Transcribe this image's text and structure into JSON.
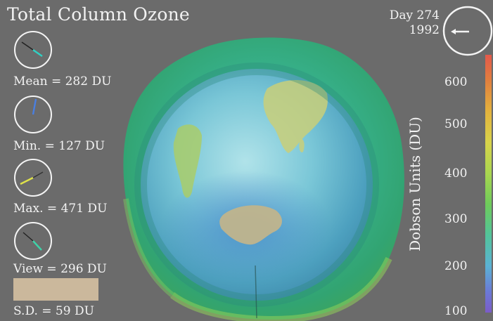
{
  "title": "Total Column Ozone",
  "date": {
    "day": "Day 274",
    "year": "1992"
  },
  "stats": [
    {
      "label": "Mean = 282 DU",
      "dial_color": "#31d0c3"
    },
    {
      "label": "Min. = 127 DU",
      "dial_color": "#4a7fe0"
    },
    {
      "label": "Max. = 471 DU",
      "dial_color": "#dfe24a"
    },
    {
      "label": "View = 296 DU",
      "dial_color": "#3ed2a8"
    }
  ],
  "sd": {
    "label": "S.D. = 59 DU",
    "color": "#cbb89c"
  },
  "colorbar": {
    "title": "Dobson Units (DU)",
    "ticks": [
      "600",
      "500",
      "400",
      "300",
      "200",
      "100"
    ]
  },
  "colors": {
    "background": "#6b6b6b",
    "text": "#f2f2f2"
  }
}
